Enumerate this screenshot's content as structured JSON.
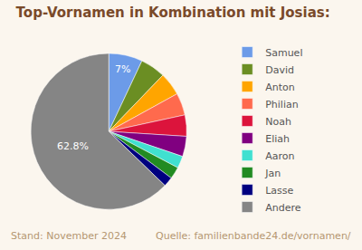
{
  "chart_data": {
    "type": "pie",
    "title": "Top-Vornamen in Kombination mit Josias:",
    "categories": [
      "Samuel",
      "David",
      "Anton",
      "Philian",
      "Noah",
      "Eliah",
      "Aaron",
      "Jan",
      "Lasse",
      "Andere"
    ],
    "values": [
      7,
      5.2,
      4.8,
      4.6,
      4.4,
      4.2,
      2.5,
      2.5,
      2,
      62.8
    ],
    "value_labels": [
      "7%",
      null,
      null,
      null,
      null,
      null,
      null,
      null,
      null,
      "62.8%"
    ],
    "data_labels": true,
    "colors": [
      "#6c9be8",
      "#6b8e23",
      "#ffa500",
      "#ff6a4d",
      "#dc143c",
      "#800080",
      "#40e0d0",
      "#228b22",
      "#000080",
      "#858585"
    ],
    "legend": "right",
    "annotations": [
      "Stand: November 2024",
      "Quelle: familienbande24.de/vornamen/"
    ]
  }
}
